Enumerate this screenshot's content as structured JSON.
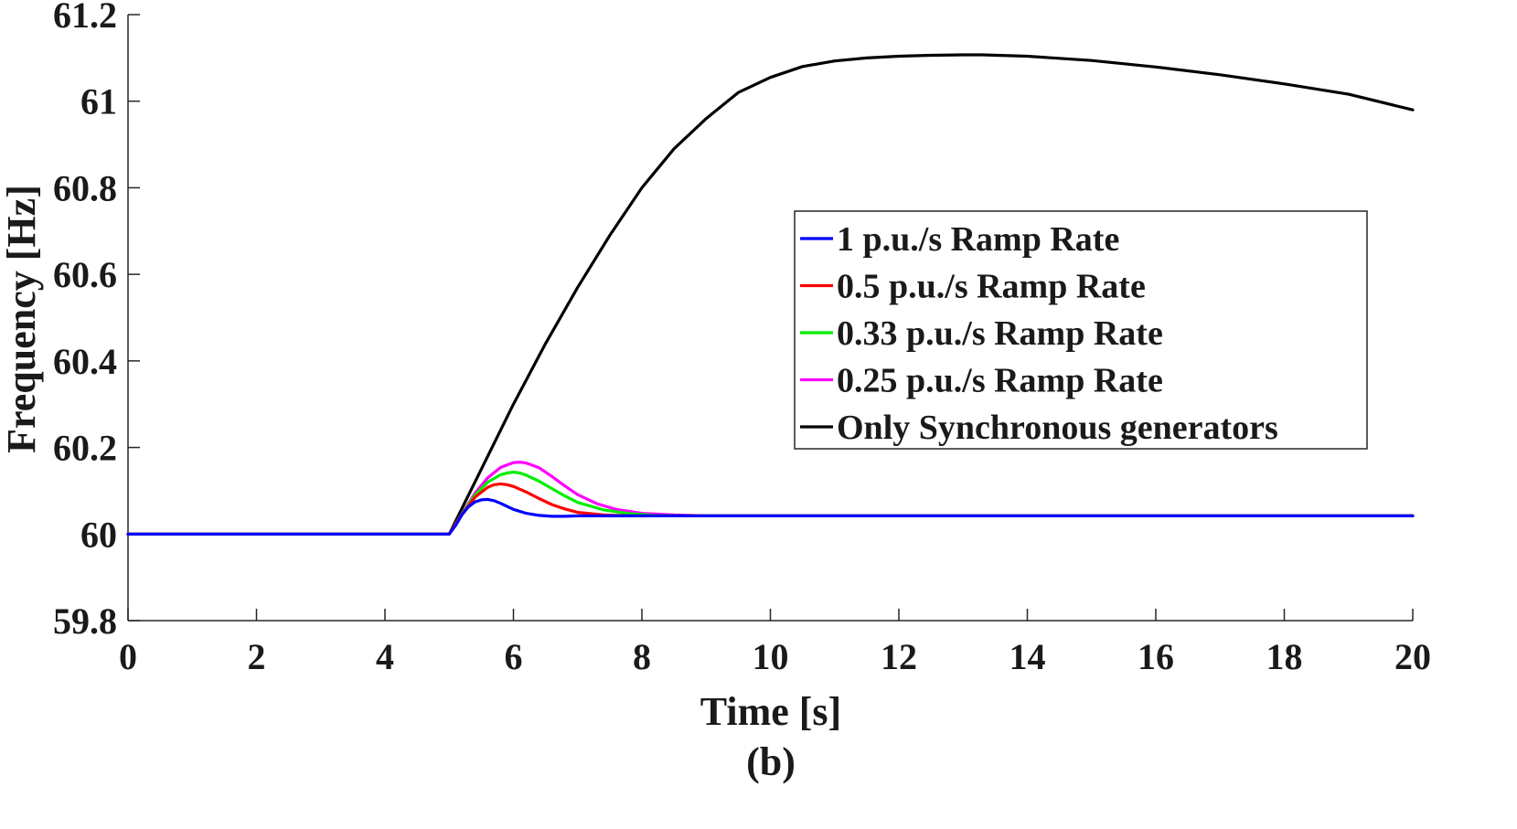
{
  "chart_data": {
    "type": "line",
    "xlabel": "Time [s]",
    "ylabel": "Frequency [Hz]",
    "caption": "(b)",
    "xlim": [
      0,
      20
    ],
    "ylim": [
      59.8,
      61.2
    ],
    "xticks": [
      0,
      2,
      4,
      6,
      8,
      10,
      12,
      14,
      16,
      18,
      20
    ],
    "yticks": [
      59.8,
      60,
      60.2,
      60.4,
      60.6,
      60.8,
      61,
      61.2
    ],
    "ytick_labels": [
      "59.8",
      "60",
      "60.2",
      "60.4",
      "60.6",
      "60.8",
      "61",
      "61.2"
    ],
    "grid": false,
    "legend_position": "right",
    "series": [
      {
        "name": "1 p.u./s Ramp Rate",
        "color": "#0000ff",
        "x": [
          0,
          5,
          5.1,
          5.2,
          5.3,
          5.4,
          5.5,
          5.6,
          5.7,
          5.8,
          5.9,
          6.0,
          6.2,
          6.4,
          6.6,
          6.8,
          7.0,
          7.5,
          20
        ],
        "y": [
          60,
          60,
          60.02,
          60.045,
          60.063,
          60.074,
          60.079,
          60.08,
          60.077,
          60.071,
          60.064,
          60.057,
          60.048,
          60.043,
          60.041,
          60.041,
          60.042,
          60.042,
          60.042
        ]
      },
      {
        "name": "0.5 p.u./s Ramp Rate",
        "color": "#ff0000",
        "x": [
          0,
          5,
          5.2,
          5.4,
          5.6,
          5.7,
          5.8,
          5.9,
          6.0,
          6.2,
          6.4,
          6.6,
          6.8,
          7.0,
          7.4,
          7.8,
          8.2,
          20
        ],
        "y": [
          60,
          60,
          60.045,
          60.085,
          60.108,
          60.114,
          60.116,
          60.114,
          60.11,
          60.097,
          60.082,
          60.068,
          60.058,
          60.05,
          60.044,
          60.042,
          60.042,
          60.042
        ]
      },
      {
        "name": "0.33 p.u./s Ramp Rate",
        "color": "#00ee00",
        "x": [
          0,
          5,
          5.2,
          5.4,
          5.6,
          5.8,
          5.9,
          6.0,
          6.1,
          6.2,
          6.4,
          6.6,
          6.8,
          7.0,
          7.4,
          7.8,
          8.2,
          8.8,
          20
        ],
        "y": [
          60,
          60,
          60.046,
          60.09,
          60.12,
          60.137,
          60.141,
          60.143,
          60.141,
          60.136,
          60.122,
          60.105,
          60.088,
          60.073,
          60.056,
          60.047,
          60.043,
          60.042,
          60.042
        ]
      },
      {
        "name": "0.25 p.u./s Ramp Rate",
        "color": "#ff00ff",
        "x": [
          0,
          5,
          5.2,
          5.4,
          5.6,
          5.8,
          6.0,
          6.1,
          6.2,
          6.4,
          6.6,
          6.8,
          7.0,
          7.3,
          7.6,
          8.0,
          8.5,
          9.0,
          20
        ],
        "y": [
          60,
          60,
          60.047,
          60.094,
          60.13,
          60.154,
          60.165,
          60.166,
          60.164,
          60.153,
          60.133,
          60.111,
          60.091,
          60.07,
          60.057,
          60.048,
          60.044,
          60.042,
          60.042
        ]
      },
      {
        "name": "Only Synchronous generators",
        "color": "#000000",
        "x": [
          0,
          5,
          5.5,
          6,
          6.5,
          7,
          7.5,
          8,
          8.5,
          9,
          9.5,
          10,
          10.5,
          11,
          11.5,
          12,
          12.5,
          13,
          13.3,
          14,
          15,
          16,
          17,
          18,
          19,
          20
        ],
        "y": [
          60,
          60,
          60.15,
          60.3,
          60.44,
          60.57,
          60.69,
          60.8,
          60.89,
          60.96,
          61.02,
          61.055,
          61.08,
          61.093,
          61.1,
          61.104,
          61.106,
          61.107,
          61.107,
          61.104,
          61.094,
          61.079,
          61.061,
          61.04,
          61.016,
          60.98
        ]
      }
    ]
  }
}
